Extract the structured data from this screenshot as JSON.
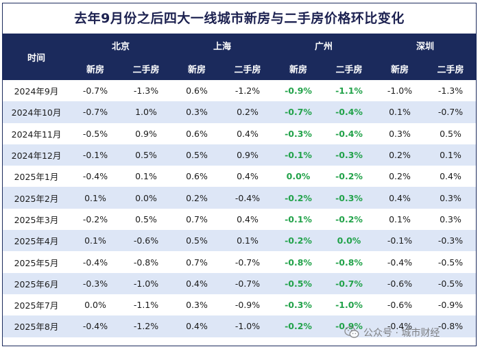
{
  "title": "去年9月份之后四大一线城市新房与二手房价格环比变化",
  "header": {
    "time_label": "时间",
    "cities": [
      "北京",
      "上海",
      "广州",
      "深圳"
    ],
    "sub_new": "新房",
    "sub_second": "二手房"
  },
  "rows": [
    {
      "month": "2024年9月",
      "cells": [
        "-0.7%",
        "-1.3%",
        "0.6%",
        "-1.2%",
        "-0.9%",
        "-1.1%",
        "-1.0%",
        "-1.3%"
      ]
    },
    {
      "month": "2024年10月",
      "cells": [
        "-0.7%",
        "1.0%",
        "0.3%",
        "0.2%",
        "-0.7%",
        "-0.4%",
        "0.1%",
        "-0.7%"
      ]
    },
    {
      "month": "2024年11月",
      "cells": [
        "-0.5%",
        "0.9%",
        "0.6%",
        "0.4%",
        "-0.3%",
        "-0.4%",
        "0.3%",
        "0.5%"
      ]
    },
    {
      "month": "2024年12月",
      "cells": [
        "-0.1%",
        "0.5%",
        "0.5%",
        "0.9%",
        "-0.1%",
        "-0.3%",
        "0.2%",
        "0.1%"
      ]
    },
    {
      "month": "2025年1月",
      "cells": [
        "-0.4%",
        "0.1%",
        "0.6%",
        "0.4%",
        "0.0%",
        "-0.2%",
        "0.2%",
        "0.4%"
      ]
    },
    {
      "month": "2025年2月",
      "cells": [
        "0.1%",
        "0.0%",
        "0.2%",
        "-0.4%",
        "-0.2%",
        "-0.3%",
        "0.4%",
        "0.3%"
      ]
    },
    {
      "month": "2025年3月",
      "cells": [
        "-0.2%",
        "0.5%",
        "0.7%",
        "0.4%",
        "-0.1%",
        "-0.2%",
        "0.1%",
        "0.3%"
      ]
    },
    {
      "month": "2025年4月",
      "cells": [
        "0.1%",
        "-0.6%",
        "0.5%",
        "0.1%",
        "-0.2%",
        "0.0%",
        "-0.1%",
        "-0.3%"
      ]
    },
    {
      "month": "2025年5月",
      "cells": [
        "-0.4%",
        "-0.8%",
        "0.7%",
        "-0.7%",
        "-0.8%",
        "-0.8%",
        "-0.4%",
        "-0.5%"
      ]
    },
    {
      "month": "2025年6月",
      "cells": [
        "-0.3%",
        "-1.0%",
        "0.4%",
        "-0.7%",
        "-0.5%",
        "-0.7%",
        "-0.6%",
        "-0.5%"
      ]
    },
    {
      "month": "2025年7月",
      "cells": [
        "0.0%",
        "-1.1%",
        "0.3%",
        "-0.9%",
        "-0.3%",
        "-1.0%",
        "-0.6%",
        "-0.9%"
      ]
    },
    {
      "month": "2025年8月",
      "cells": [
        "-0.4%",
        "-1.2%",
        "0.4%",
        "-1.0%",
        "-0.2%",
        "-0.9%",
        "-0.4%",
        "-0.8%"
      ]
    }
  ],
  "watermark": {
    "label": "公众号 · 城市财经",
    "icon": "wechat-icon"
  },
  "colors": {
    "header_bg": "#1b2a5c",
    "header_text": "#ffffff",
    "guangzhou_header": "#3cc06a",
    "guangzhou_values": "#22a24a",
    "stripe": "#dde6f6"
  }
}
